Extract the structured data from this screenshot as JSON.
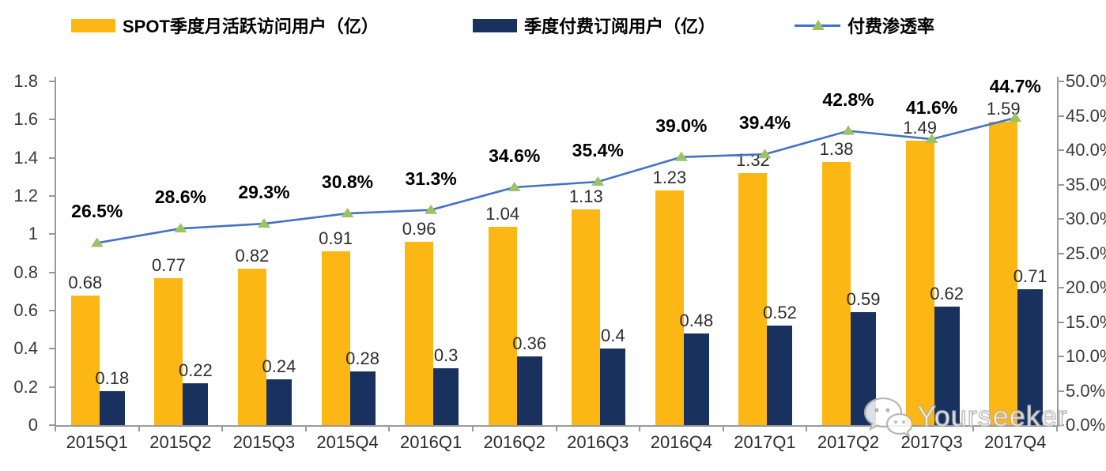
{
  "legend": {
    "items": [
      {
        "label": "SPOT季度月活跃访问用户（亿）"
      },
      {
        "label": "季度付费订阅用户（亿）"
      },
      {
        "label": "付费渗透率"
      }
    ]
  },
  "chart_data": {
    "type": "combo-bar-line",
    "title": "",
    "categories": [
      "2015Q1",
      "2015Q2",
      "2015Q3",
      "2015Q4",
      "2016Q1",
      "2016Q2",
      "2016Q3",
      "2016Q4",
      "2017Q1",
      "2017Q2",
      "2017Q3",
      "2017Q4"
    ],
    "series": [
      {
        "name": "SPOT季度月活跃访问用户（亿）",
        "type": "bar",
        "axis": "left",
        "color": "#FCB714",
        "values": [
          0.68,
          0.77,
          0.82,
          0.91,
          0.96,
          1.04,
          1.13,
          1.23,
          1.32,
          1.38,
          1.49,
          1.59
        ],
        "labels": [
          "0.68",
          "0.77",
          "0.82",
          "0.91",
          "0.96",
          "1.04",
          "1.13",
          "1.23",
          "1.32",
          "1.38",
          "1.49",
          "1.59"
        ]
      },
      {
        "name": "季度付费订阅用户（亿）",
        "type": "bar",
        "axis": "left",
        "color": "#19315E",
        "values": [
          0.18,
          0.22,
          0.24,
          0.28,
          0.3,
          0.36,
          0.4,
          0.48,
          0.52,
          0.59,
          0.62,
          0.71
        ],
        "labels": [
          "0.18",
          "0.22",
          "0.24",
          "0.28",
          "0.3",
          "0.36",
          "0.4",
          "0.48",
          "0.52",
          "0.59",
          "0.62",
          "0.71"
        ]
      },
      {
        "name": "付费渗透率",
        "type": "line",
        "axis": "right",
        "color": "#4472C4",
        "marker": "triangle",
        "marker_color": "#9CC266",
        "values": [
          26.5,
          28.6,
          29.3,
          30.8,
          31.3,
          34.6,
          35.4,
          39.0,
          39.4,
          42.8,
          41.6,
          44.7
        ],
        "labels": [
          "26.5%",
          "28.6%",
          "29.3%",
          "30.8%",
          "31.3%",
          "34.6%",
          "35.4%",
          "39.0%",
          "39.4%",
          "42.8%",
          "41.6%",
          "44.7%"
        ]
      }
    ],
    "left_axis": {
      "min": 0,
      "max": 1.8,
      "step": 0.2,
      "tick_labels": [
        "1.8",
        "1.6",
        "1.4",
        "1.2",
        "1",
        "0.8",
        "0.6",
        "0.4",
        "0.2",
        "0"
      ]
    },
    "right_axis": {
      "min": 0,
      "max": 50,
      "step": 5,
      "unit": "%",
      "tick_labels": [
        "50.0%",
        "45.0%",
        "40.0%",
        "35.0%",
        "30.0%",
        "25.0%",
        "20.0%",
        "15.0%",
        "10.0%",
        "5.0%",
        "0.0%"
      ]
    },
    "grid": false,
    "legend_position": "top"
  },
  "watermark": {
    "text": "Yourseeker",
    "icon": "wechat-icon"
  }
}
